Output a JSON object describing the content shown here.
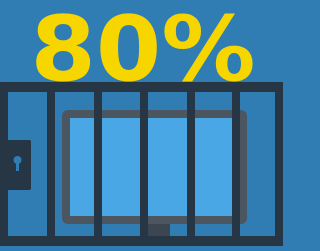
{
  "headline": "80%"
}
